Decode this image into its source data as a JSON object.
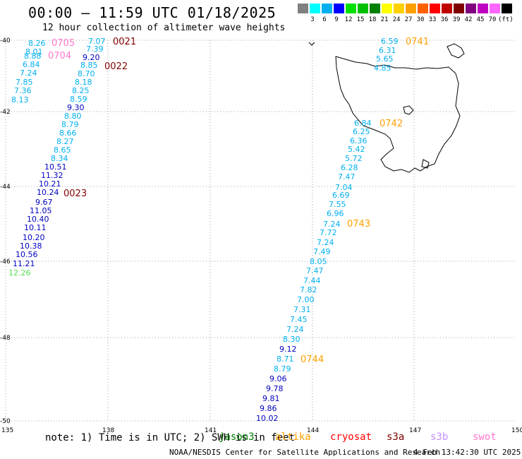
{
  "title": "00:00 – 11:59 UTC 01/18/2025",
  "subtitle": "12 hour collection of altimeter wave heights",
  "legend": {
    "unit": "(ft)",
    "labels": [
      "3",
      "6",
      "9",
      "12",
      "15",
      "18",
      "21",
      "24",
      "27",
      "30",
      "33",
      "36",
      "39",
      "42",
      "45",
      "70"
    ],
    "colors": [
      "#808080",
      "#00ffff",
      "#00b0f0",
      "#0000ff",
      "#00e000",
      "#00c000",
      "#008000",
      "#ffff00",
      "#ffd000",
      "#ffa000",
      "#ff6000",
      "#ff0000",
      "#c00000",
      "#800000",
      "#800080",
      "#c000c0",
      "#ff66ff",
      "#000000"
    ]
  },
  "axes": {
    "lon_labels": [
      "135",
      "138",
      "141",
      "144",
      "147",
      "150"
    ],
    "lat_labels": [
      "-40",
      "-42",
      "-44",
      "-46",
      "-48",
      "-50"
    ]
  },
  "track_times": [
    {
      "id": "t0705",
      "text": "0705",
      "color": "#ff77cc"
    },
    {
      "id": "t0704",
      "text": "0704",
      "color": "#ff77cc"
    },
    {
      "id": "t0021",
      "text": "0021",
      "color": "#800000"
    },
    {
      "id": "t0022",
      "text": "0022",
      "color": "#800000"
    },
    {
      "id": "t0023",
      "text": "0023",
      "color": "#800000"
    },
    {
      "id": "t0741",
      "text": "0741",
      "color": "#ffa000"
    },
    {
      "id": "t0742",
      "text": "0742",
      "color": "#ffa000"
    },
    {
      "id": "t0743",
      "text": "0743",
      "color": "#ffa000"
    },
    {
      "id": "t0744",
      "text": "0744",
      "color": "#ffa000"
    }
  ],
  "tracks": {
    "swot_pink": [
      {
        "v": "8.26",
        "c": "#00b0f0"
      },
      {
        "v": "8.01",
        "c": "#00b0f0"
      },
      {
        "v": "8.88",
        "c": "#00b0f0"
      },
      {
        "v": "6.84",
        "c": "#00b0f0"
      },
      {
        "v": "7.24",
        "c": "#00b0f0"
      },
      {
        "v": "7.85",
        "c": "#00b0f0"
      },
      {
        "v": "7.36",
        "c": "#00b0f0"
      },
      {
        "v": "8.13",
        "c": "#00b0f0"
      }
    ],
    "s3a_track": [
      {
        "v": "7.07",
        "c": "#00b0f0"
      },
      {
        "v": "7.39",
        "c": "#00b0f0"
      },
      {
        "v": "9.20",
        "c": "#0000c0"
      },
      {
        "v": "8.85",
        "c": "#00b0f0"
      },
      {
        "v": "8.70",
        "c": "#00b0f0"
      },
      {
        "v": "8.18",
        "c": "#00b0f0"
      },
      {
        "v": "8.25",
        "c": "#00b0f0"
      },
      {
        "v": "8.59",
        "c": "#00b0f0"
      },
      {
        "v": "9.30",
        "c": "#0000c0"
      },
      {
        "v": "8.80",
        "c": "#00b0f0"
      },
      {
        "v": "8.79",
        "c": "#00b0f0"
      },
      {
        "v": "8.66",
        "c": "#00b0f0"
      },
      {
        "v": "8.27",
        "c": "#00b0f0"
      },
      {
        "v": "8.65",
        "c": "#00b0f0"
      },
      {
        "v": "8.34",
        "c": "#00b0f0"
      },
      {
        "v": "10.51",
        "c": "#0000c0"
      },
      {
        "v": "11.32",
        "c": "#0000c0"
      },
      {
        "v": "10.21",
        "c": "#0000c0"
      },
      {
        "v": "10.24",
        "c": "#0000c0"
      },
      {
        "v": "9.67",
        "c": "#0000c0"
      },
      {
        "v": "11.05",
        "c": "#0000c0"
      },
      {
        "v": "10.40",
        "c": "#0000c0"
      },
      {
        "v": "10.11",
        "c": "#0000c0"
      },
      {
        "v": "10.20",
        "c": "#0000c0"
      },
      {
        "v": "10.38",
        "c": "#0000c0"
      },
      {
        "v": "10.56",
        "c": "#0000c0"
      },
      {
        "v": "11.21",
        "c": "#0000c0"
      },
      {
        "v": "12.26",
        "c": "#55dd55"
      }
    ],
    "altika_track": [
      {
        "v": "6.59",
        "c": "#00b0f0"
      },
      {
        "v": "6.31",
        "c": "#00b0f0"
      },
      {
        "v": "5.65",
        "c": "#00b0f0"
      },
      {
        "v": "4.85",
        "c": "#00b0f0"
      },
      {
        "v": "6.84",
        "c": "#00b0f0"
      },
      {
        "v": "6.25",
        "c": "#00b0f0"
      },
      {
        "v": "6.36",
        "c": "#00b0f0"
      },
      {
        "v": "5.42",
        "c": "#00b0f0"
      },
      {
        "v": "5.72",
        "c": "#00b0f0"
      },
      {
        "v": "6.28",
        "c": "#00b0f0"
      },
      {
        "v": "7.47",
        "c": "#00b0f0"
      },
      {
        "v": "7.04",
        "c": "#00b0f0"
      },
      {
        "v": "6.69",
        "c": "#00b0f0"
      },
      {
        "v": "7.55",
        "c": "#00b0f0"
      },
      {
        "v": "6.96",
        "c": "#00b0f0"
      },
      {
        "v": "7.24",
        "c": "#00b0f0"
      },
      {
        "v": "7.72",
        "c": "#00b0f0"
      },
      {
        "v": "7.24",
        "c": "#00b0f0"
      },
      {
        "v": "7.49",
        "c": "#00b0f0"
      },
      {
        "v": "8.05",
        "c": "#00b0f0"
      },
      {
        "v": "7.47",
        "c": "#00b0f0"
      },
      {
        "v": "7.44",
        "c": "#00b0f0"
      },
      {
        "v": "7.82",
        "c": "#00b0f0"
      },
      {
        "v": "7.00",
        "c": "#00b0f0"
      },
      {
        "v": "7.31",
        "c": "#00b0f0"
      },
      {
        "v": "7.45",
        "c": "#00b0f0"
      },
      {
        "v": "7.24",
        "c": "#00b0f0"
      },
      {
        "v": "8.30",
        "c": "#00b0f0"
      },
      {
        "v": "9.12",
        "c": "#0000c0"
      },
      {
        "v": "8.71",
        "c": "#00b0f0"
      },
      {
        "v": "8.79",
        "c": "#00b0f0"
      },
      {
        "v": "9.06",
        "c": "#0000c0"
      },
      {
        "v": "9.78",
        "c": "#0000c0"
      },
      {
        "v": "9.81",
        "c": "#0000c0"
      },
      {
        "v": "9.86",
        "c": "#0000c0"
      },
      {
        "v": "10.02",
        "c": "#0000c0"
      }
    ]
  },
  "footer": {
    "note": "note:  1) Time is in UTC; 2) SWH is in feet",
    "satellites": [
      {
        "name": "jason3",
        "color": "#008000"
      },
      {
        "name": "altika",
        "color": "#ffa000"
      },
      {
        "name": "cryosat",
        "color": "#ff0000"
      },
      {
        "name": "s3a",
        "color": "#800000"
      },
      {
        "name": "s3b",
        "color": "#c090ff"
      },
      {
        "name": "swot",
        "color": "#ff77cc"
      }
    ],
    "credit": "NOAA/NESDIS Center for Satellite Applications and Research",
    "timestamp": "4 Feb 13:42:30 UTC 2025"
  }
}
